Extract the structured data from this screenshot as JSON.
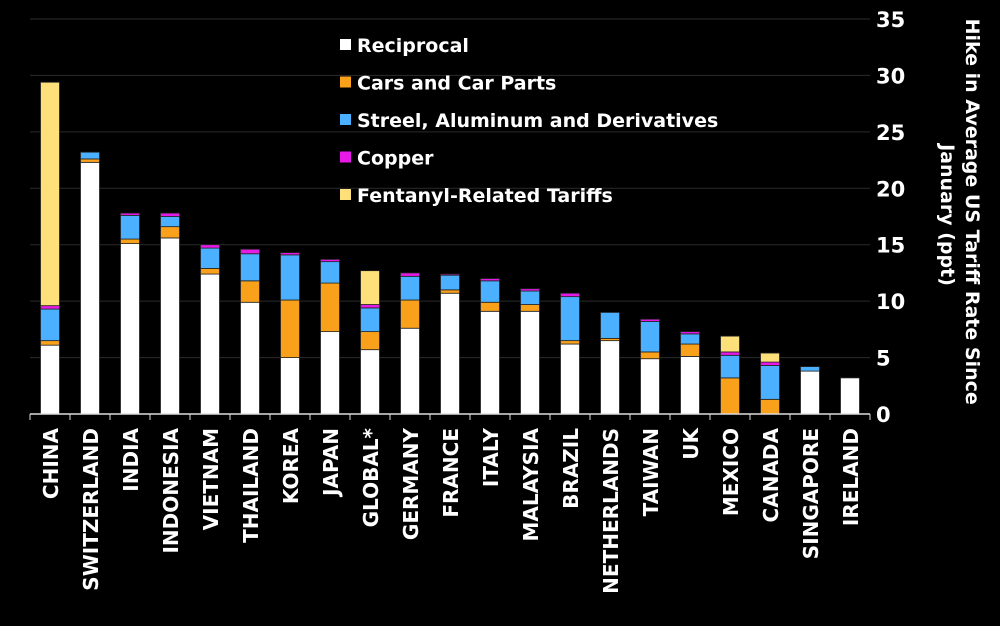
{
  "chart_data": {
    "type": "bar",
    "stacked": true,
    "title": "",
    "xlabel": "",
    "ylabel": "Hike in Average US Tariff Rate Since January (ppt)",
    "ylabel_lines": [
      "Hike in Average US Tariff Rate Since",
      "January (ppt)"
    ],
    "ylim": [
      0,
      35
    ],
    "yticks": [
      0,
      5,
      10,
      15,
      20,
      25,
      30,
      35
    ],
    "y_axis_side": "right",
    "grid": true,
    "legend_position": "top-center",
    "categories": [
      "CHINA",
      "SWITZERLAND",
      "INDIA",
      "INDONESIA",
      "VIETNAM",
      "THAILAND",
      "KOREA",
      "JAPAN",
      "GLOBAL*",
      "GERMANY",
      "FRANCE",
      "ITALY",
      "MALAYSIA",
      "BRAZIL",
      "NETHERLANDS",
      "TAIWAN",
      "UK",
      "MEXICO",
      "CANADA",
      "SINGAPORE",
      "IRELAND"
    ],
    "series": [
      {
        "name": "Reciprocal",
        "color": "#ffffff",
        "values": [
          6.1,
          22.3,
          15.1,
          15.6,
          12.4,
          9.9,
          5.0,
          7.3,
          5.7,
          7.6,
          10.7,
          9.1,
          9.1,
          6.2,
          6.5,
          4.9,
          5.1,
          0,
          0,
          3.8,
          3.2
        ]
      },
      {
        "name": "Cars and Car Parts",
        "color": "#f9a11b",
        "values": [
          0.4,
          0.3,
          0.4,
          1.0,
          0.5,
          1.9,
          5.1,
          4.3,
          1.6,
          2.5,
          0.3,
          0.8,
          0.6,
          0.3,
          0.2,
          0.6,
          1.1,
          3.2,
          1.3,
          0,
          0
        ]
      },
      {
        "name": "Streel, Aluminum and Derivatives",
        "color": "#4ab0ff",
        "values": [
          2.8,
          0.6,
          2.1,
          0.9,
          1.8,
          2.4,
          4.0,
          1.9,
          2.1,
          2.1,
          1.3,
          1.9,
          1.2,
          3.9,
          2.3,
          2.7,
          0.9,
          2.0,
          3.0,
          0.4,
          0
        ]
      },
      {
        "name": "Copper",
        "color": "#e619e6",
        "values": [
          0.3,
          0,
          0.2,
          0.3,
          0.3,
          0.4,
          0.2,
          0.2,
          0.3,
          0.3,
          0.1,
          0.2,
          0.2,
          0.3,
          0,
          0.2,
          0.2,
          0.3,
          0.3,
          0,
          0
        ]
      },
      {
        "name": "Fentanyl-Related Tariffs",
        "color": "#fde07a",
        "values": [
          19.8,
          0,
          0,
          0,
          0,
          0,
          0,
          0,
          3.0,
          0,
          0,
          0,
          0,
          0,
          0,
          0,
          0,
          1.4,
          0.8,
          0,
          0
        ]
      }
    ]
  }
}
